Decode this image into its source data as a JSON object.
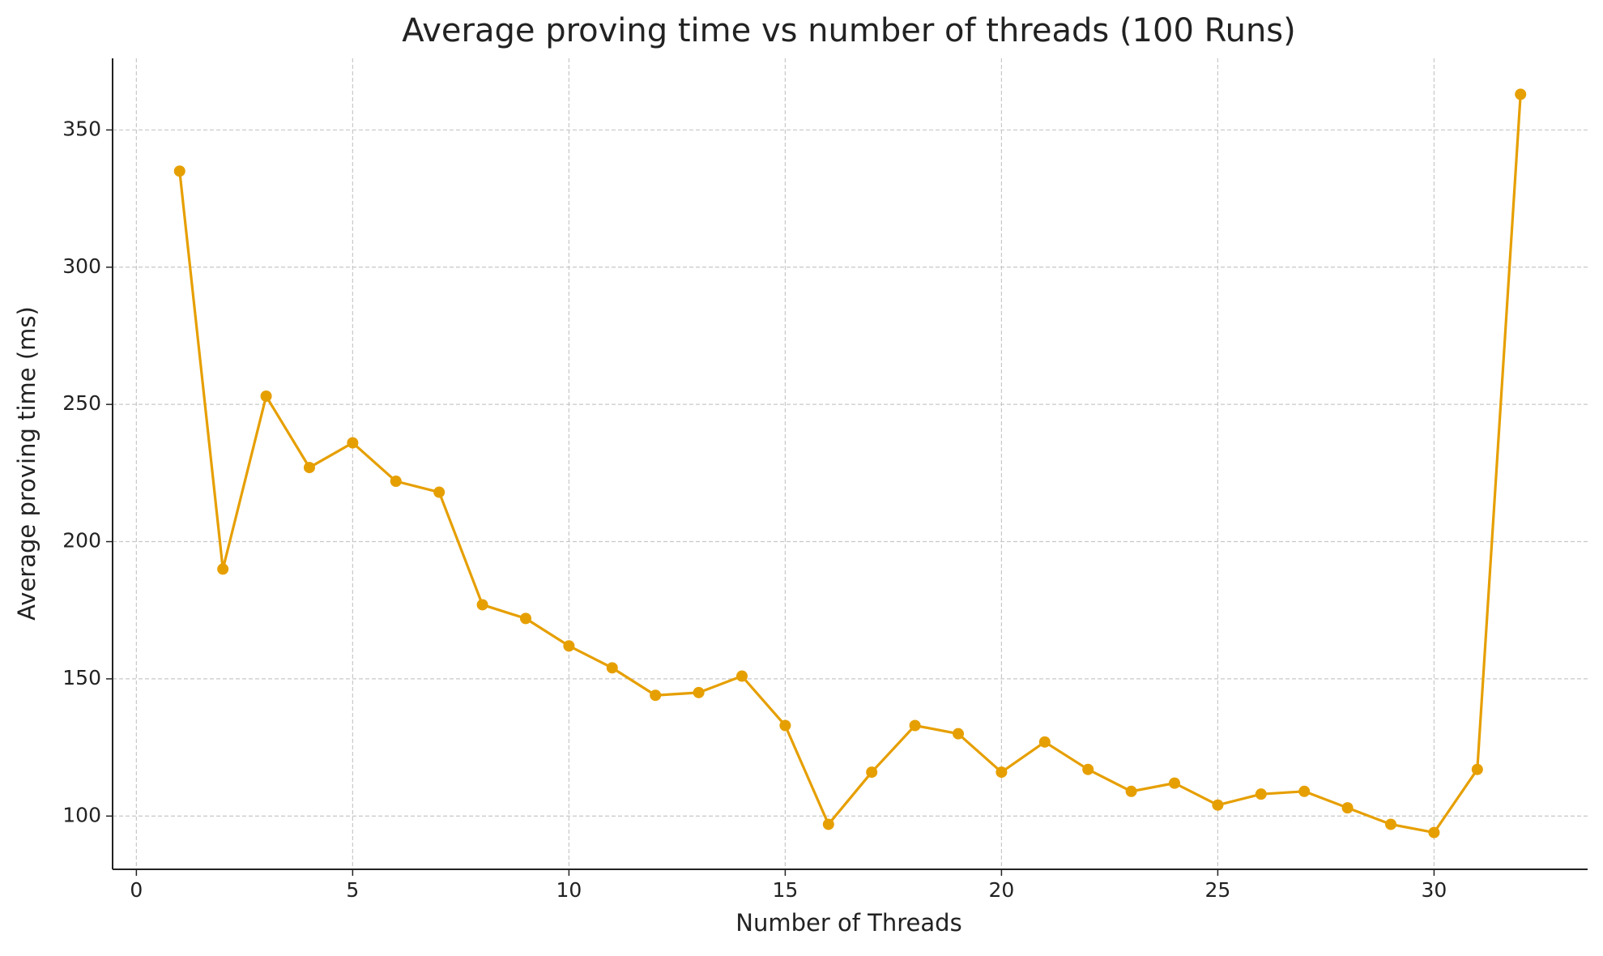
{
  "chart_data": {
    "type": "line",
    "title": "Average proving time vs number of threads (100 Runs)",
    "x_label": "Number of Threads",
    "y_label": "Average proving time (ms)",
    "x": [
      1,
      2,
      3,
      4,
      5,
      6,
      7,
      8,
      9,
      10,
      11,
      12,
      13,
      14,
      15,
      16,
      17,
      18,
      19,
      20,
      21,
      22,
      23,
      24,
      25,
      26,
      27,
      28,
      29,
      30,
      31,
      32
    ],
    "series": [
      {
        "name": "Average proving time",
        "color": "#e69f00",
        "values": [
          335,
          190,
          253,
          227,
          236,
          222,
          218,
          177,
          172,
          162,
          154,
          144,
          145,
          151,
          133,
          97,
          116,
          133,
          130,
          116,
          127,
          117,
          109,
          112,
          104,
          108,
          109,
          103,
          97,
          94,
          117,
          363
        ]
      }
    ],
    "xlim": [
      -0.55,
      33.55
    ],
    "ylim": [
      80.6,
      376.1
    ],
    "xticks": [
      0,
      5,
      10,
      15,
      20,
      25,
      30
    ],
    "yticks": [
      100,
      150,
      200,
      250,
      300,
      350
    ],
    "grid": true
  }
}
